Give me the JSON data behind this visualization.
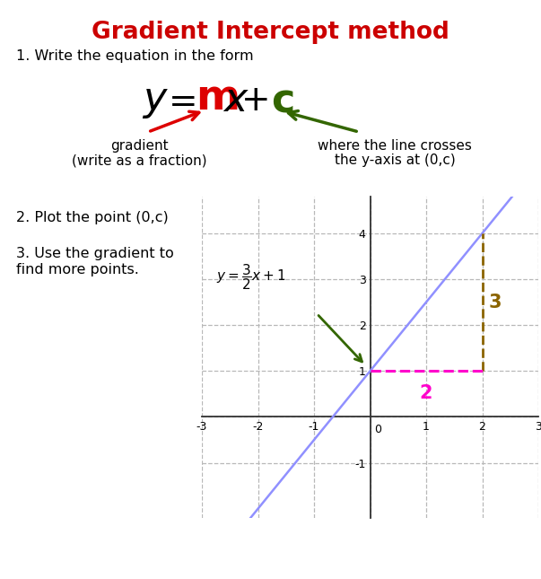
{
  "title": "Gradient Intercept method",
  "title_color": "#cc0000",
  "background_color": "#ffffff",
  "step1_text": "1. Write the equation in the form",
  "step2_text": "2. Plot the point (0,c)",
  "step3_text": "3. Use the gradient to\nfind more points.",
  "gradient_label_line1": "gradient",
  "gradient_label_line2": "(write as a fraction)",
  "intercept_label_line1": "where the line crosses",
  "intercept_label_line2": "the y-axis at (0,c)",
  "rise_label": "3",
  "run_label": "2",
  "line_color": "#9090ff",
  "rise_color": "#8B6400",
  "run_color": "#ff00cc",
  "arrow_gradient_color": "#dd0000",
  "arrow_intercept_color": "#336600",
  "graph_annotation_arrow_color": "#336600",
  "formula_m_color": "#dd0000",
  "formula_c_color": "#336600",
  "xlim": [
    -3,
    3
  ],
  "ylim": [
    -2.2,
    4.8
  ],
  "xticks": [
    -3,
    -2,
    -1,
    0,
    1,
    2,
    3
  ],
  "yticks": [
    -1,
    0,
    1,
    2,
    3,
    4
  ],
  "slope": 1.5,
  "intercept": 1
}
